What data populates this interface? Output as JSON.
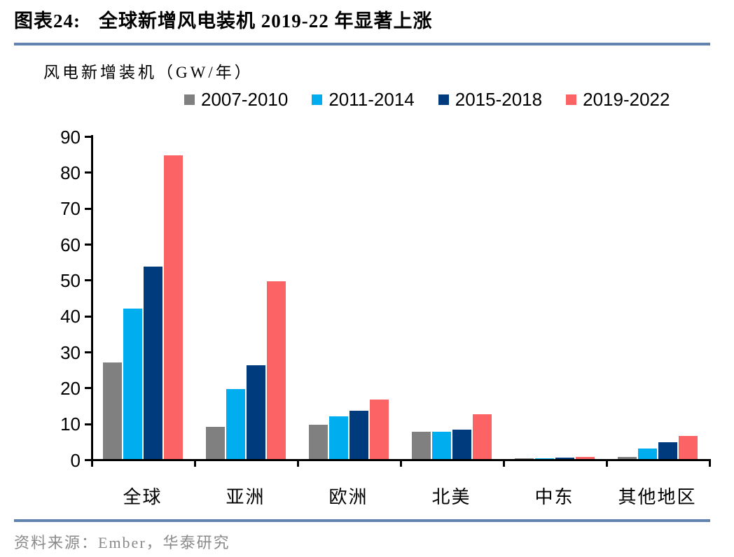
{
  "figure": {
    "label": "图表24:",
    "title": "全球新增风电装机 2019-22 年显著上涨"
  },
  "unit_label": "风电新增装机（GW/年）",
  "source": "资料来源：Ember，华泰研究",
  "colors": {
    "rule_blue": "#6183ae",
    "axis_black": "#000000",
    "source_gray": "#8a8a8a",
    "series_gray": "#808080",
    "series_lightblue": "#00aeef",
    "series_navy": "#003c7d",
    "series_salmon": "#fc6365"
  },
  "chart_data": {
    "type": "bar",
    "title": "全球新增风电装机 2019-22 年显著上涨",
    "unit": "GW/年",
    "categories": [
      "全球",
      "亚洲",
      "欧洲",
      "北美",
      "中东",
      "其他地区"
    ],
    "series": [
      {
        "name": "2007-2010",
        "color": "#808080",
        "values": [
          26.8,
          9.0,
          9.5,
          7.6,
          0.2,
          0.5
        ]
      },
      {
        "name": "2011-2014",
        "color": "#00aeef",
        "values": [
          41.8,
          19.5,
          11.8,
          7.6,
          0.2,
          3.0
        ]
      },
      {
        "name": "2015-2018",
        "color": "#003c7d",
        "values": [
          53.5,
          26.2,
          13.5,
          8.2,
          0.3,
          4.7
        ]
      },
      {
        "name": "2019-2022",
        "color": "#fc6365",
        "values": [
          84.5,
          49.5,
          16.5,
          12.4,
          0.5,
          6.5
        ]
      }
    ],
    "xlabel": "",
    "ylabel": "风电新增装机（GW/年）",
    "ylim": [
      0,
      90
    ],
    "yticks": [
      0,
      10,
      20,
      30,
      40,
      50,
      60,
      70,
      80,
      90
    ],
    "grid": false,
    "legend_position": "top"
  }
}
